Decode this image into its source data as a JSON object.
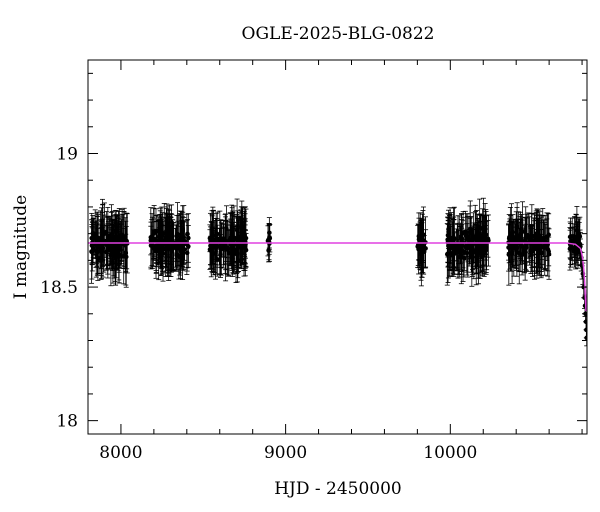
{
  "chart_data": {
    "type": "scatter",
    "title": "OGLE-2025-BLG-0822",
    "xlabel": "HJD - 2450000",
    "ylabel": "I magnitude",
    "xlim": [
      7800,
      10830
    ],
    "ylim": [
      19.35,
      17.95
    ],
    "y_inverted": true,
    "xticks": [
      8000,
      9000,
      10000
    ],
    "yticks": [
      18,
      18.5,
      19
    ],
    "ytick_labels": [
      "18",
      "18.5",
      "19"
    ],
    "x_minor_step": 200,
    "y_minor_step": 0.1,
    "grid": false,
    "legend": "none",
    "baseline_mag": 18.665,
    "colors": {
      "data": "#000000",
      "model": "#e040e0",
      "frame": "#000000"
    },
    "seasons": [
      {
        "x_start": 7820,
        "x_end": 8040,
        "n": 120,
        "err_min": 0.05,
        "err_max": 0.12
      },
      {
        "x_start": 8175,
        "x_end": 8410,
        "n": 120,
        "err_min": 0.05,
        "err_max": 0.12
      },
      {
        "x_start": 8540,
        "x_end": 8760,
        "n": 120,
        "err_min": 0.05,
        "err_max": 0.12
      },
      {
        "x_start": 8890,
        "x_end": 8910,
        "n": 8,
        "err_min": 0.04,
        "err_max": 0.08
      },
      {
        "x_start": 9800,
        "x_end": 9850,
        "n": 22,
        "err_min": 0.06,
        "err_max": 0.12
      },
      {
        "x_start": 9980,
        "x_end": 10240,
        "n": 120,
        "err_min": 0.05,
        "err_max": 0.12
      },
      {
        "x_start": 10350,
        "x_end": 10600,
        "n": 110,
        "err_min": 0.05,
        "err_max": 0.12
      },
      {
        "x_start": 10720,
        "x_end": 10790,
        "n": 35,
        "err_min": 0.04,
        "err_max": 0.09
      }
    ],
    "event": {
      "x": [
        10790,
        10795,
        10800,
        10805,
        10810,
        10815,
        10818,
        10821,
        10824,
        10826,
        10828
      ],
      "y": [
        18.63,
        18.61,
        18.58,
        18.55,
        18.5,
        18.46,
        18.43,
        18.4,
        18.37,
        18.34,
        18.31
      ],
      "err": [
        0.05,
        0.05,
        0.05,
        0.04,
        0.04,
        0.04,
        0.04,
        0.03,
        0.03,
        0.03,
        0.03
      ]
    },
    "model": {
      "x": [
        7800,
        10700,
        10760,
        10790,
        10800,
        10810,
        10816,
        10820,
        10824,
        10828,
        10830
      ],
      "y": [
        18.665,
        18.665,
        18.66,
        18.645,
        18.62,
        18.57,
        18.52,
        18.46,
        18.41,
        18.44,
        18.49
      ]
    }
  }
}
